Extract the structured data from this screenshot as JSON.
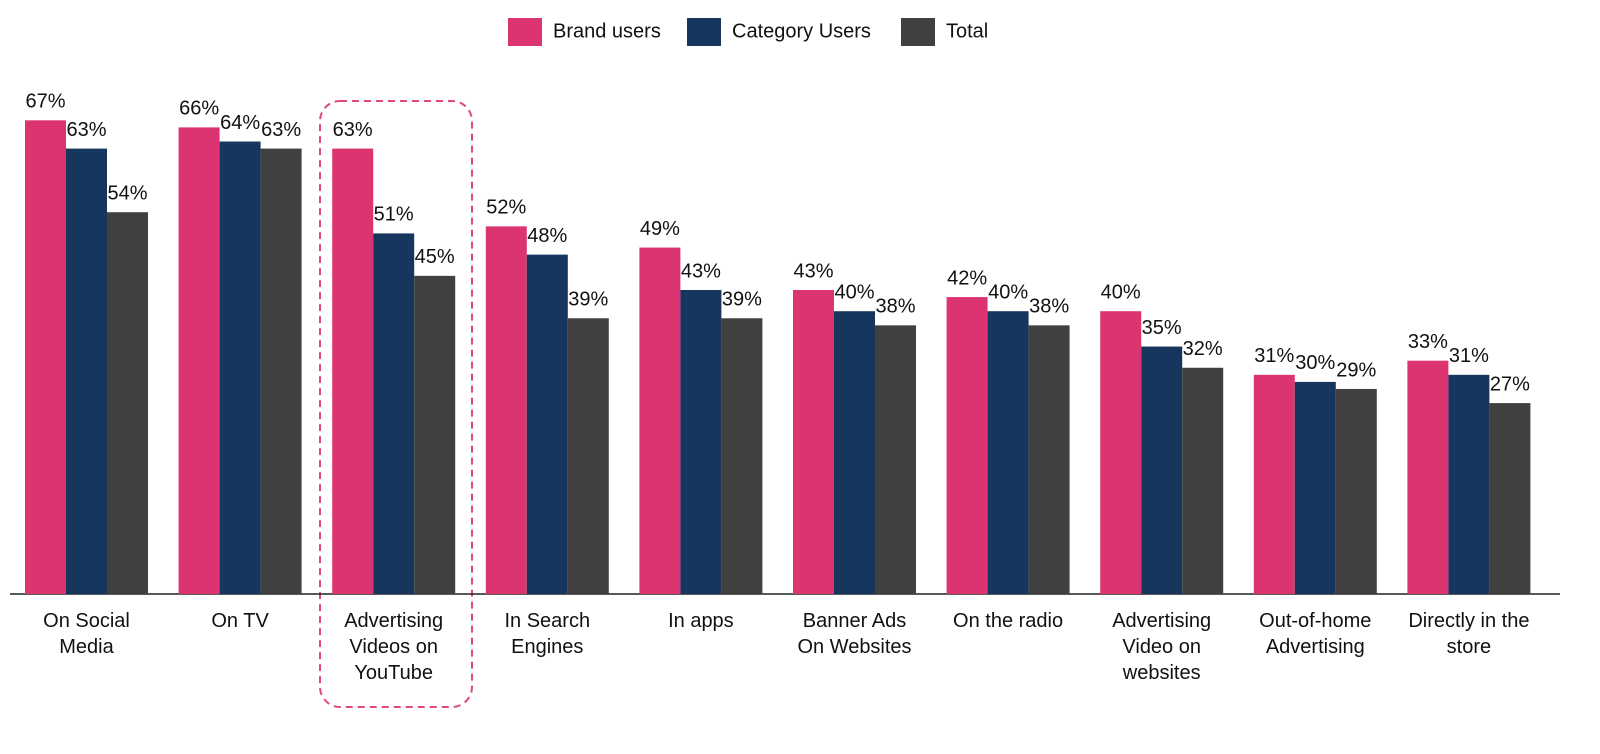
{
  "chart_data": {
    "type": "bar",
    "categories": [
      "On Social Media",
      "On TV",
      "Advertising Videos on YouTube",
      "In Search Engines",
      "In apps",
      "Banner Ads On Websites",
      "On the radio",
      "Advertising Video on websites",
      "Out-of-home Advertising",
      "Directly in the store"
    ],
    "series": [
      {
        "name": "Brand users",
        "color": "#dc3470",
        "values": [
          67,
          66,
          63,
          52,
          49,
          43,
          42,
          40,
          31,
          33
        ],
        "value_labels": [
          "67%",
          "66%",
          "63%",
          "52%",
          "49%",
          "43%",
          "42%",
          "40%",
          "31%",
          "33%"
        ]
      },
      {
        "name": "Category Users",
        "color": "#17365d",
        "values": [
          63,
          64,
          51,
          48,
          43,
          40,
          40,
          35,
          30,
          31
        ],
        "value_labels": [
          "63%",
          "64%",
          "51%",
          "48%",
          "43%",
          "40%",
          "40%",
          "35%",
          "30%",
          "31%"
        ]
      },
      {
        "name": "Total",
        "color": "#404040",
        "values": [
          54,
          63,
          45,
          39,
          39,
          38,
          38,
          32,
          29,
          27
        ],
        "value_labels": [
          "54%",
          "63%",
          "45%",
          "39%",
          "39%",
          "38%",
          "38%",
          "32%",
          "29%",
          "27%"
        ]
      }
    ],
    "legend": "top"
  }
}
